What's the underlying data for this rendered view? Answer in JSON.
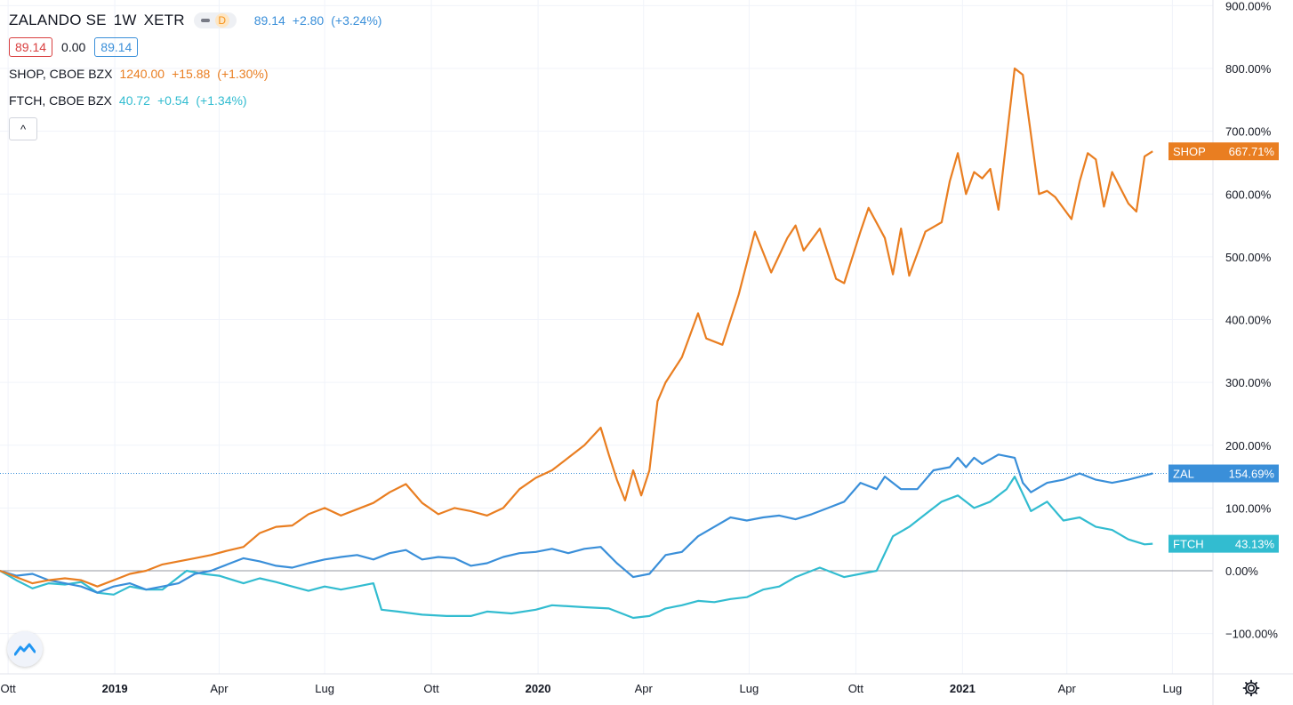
{
  "legend": {
    "main": {
      "symbol": "ZALANDO SE",
      "interval": "1W",
      "exchange": "XETR",
      "badge": "D",
      "last": "89.14",
      "change": "+2.80",
      "change_pct": "(+3.24%)"
    },
    "ohlc": {
      "bid": "89.14",
      "spread": "0.00",
      "ask": "89.14"
    },
    "compare": [
      {
        "symbol": "SHOP, CBOE BZX",
        "last": "1240.00",
        "change": "+15.88",
        "change_pct": "(+1.30%)"
      },
      {
        "symbol": "FTCH, CBOE BZX",
        "last": "40.72",
        "change": "+0.54",
        "change_pct": "(+1.34%)"
      }
    ],
    "collapse_glyph": "^"
  },
  "colors": {
    "shop": "#e97e21",
    "zal": "#3a8fd9",
    "ftch": "#32bcd0",
    "grid": "#f0f3fa",
    "text": "#131722",
    "red": "#d93f3f"
  },
  "icons": {
    "logo": "tradingview-logo-icon",
    "settings": "gear-icon"
  },
  "chart_data": {
    "type": "line",
    "y_unit": "%",
    "ylim": [
      -150,
      900
    ],
    "yticks": [
      -100,
      0,
      100,
      200,
      300,
      400,
      500,
      600,
      700,
      800,
      900
    ],
    "ytick_labels": [
      "−100.00%",
      "0.00%",
      "100.00%",
      "200.00%",
      "300.00%",
      "400.00%",
      "500.00%",
      "600.00%",
      "700.00%",
      "800.00%",
      "900.00%"
    ],
    "xlim": [
      "2018-09-24",
      "2021-09-20"
    ],
    "xticks": [
      {
        "date": "2018-10-01",
        "label": "Ott",
        "bold": false
      },
      {
        "date": "2019-01-01",
        "label": "2019",
        "bold": true
      },
      {
        "date": "2019-04-01",
        "label": "Apr",
        "bold": false
      },
      {
        "date": "2019-07-01",
        "label": "Lug",
        "bold": false
      },
      {
        "date": "2019-10-01",
        "label": "Ott",
        "bold": false
      },
      {
        "date": "2020-01-01",
        "label": "2020",
        "bold": true
      },
      {
        "date": "2020-04-01",
        "label": "Apr",
        "bold": false
      },
      {
        "date": "2020-07-01",
        "label": "Lug",
        "bold": false
      },
      {
        "date": "2020-10-01",
        "label": "Ott",
        "bold": false
      },
      {
        "date": "2021-01-01",
        "label": "2021",
        "bold": true
      },
      {
        "date": "2021-04-01",
        "label": "Apr",
        "bold": false
      },
      {
        "date": "2021-07-01",
        "label": "Lug",
        "bold": false
      }
    ],
    "grid": true,
    "series": [
      {
        "name": "SHOP",
        "label_value": "667.71%",
        "color": "#e97e21",
        "points": [
          [
            "2018-09-24",
            0
          ],
          [
            "2018-10-08",
            -10
          ],
          [
            "2018-10-22",
            -20
          ],
          [
            "2018-11-05",
            -15
          ],
          [
            "2018-11-19",
            -12
          ],
          [
            "2018-12-03",
            -15
          ],
          [
            "2018-12-17",
            -25
          ],
          [
            "2018-12-31",
            -15
          ],
          [
            "2019-01-14",
            -5
          ],
          [
            "2019-01-28",
            0
          ],
          [
            "2019-02-11",
            10
          ],
          [
            "2019-02-25",
            15
          ],
          [
            "2019-03-11",
            20
          ],
          [
            "2019-03-25",
            25
          ],
          [
            "2019-04-08",
            32
          ],
          [
            "2019-04-22",
            38
          ],
          [
            "2019-05-06",
            60
          ],
          [
            "2019-05-20",
            70
          ],
          [
            "2019-06-03",
            72
          ],
          [
            "2019-06-17",
            90
          ],
          [
            "2019-07-01",
            100
          ],
          [
            "2019-07-15",
            88
          ],
          [
            "2019-07-29",
            98
          ],
          [
            "2019-08-12",
            108
          ],
          [
            "2019-08-26",
            125
          ],
          [
            "2019-09-09",
            138
          ],
          [
            "2019-09-23",
            108
          ],
          [
            "2019-10-07",
            90
          ],
          [
            "2019-10-21",
            100
          ],
          [
            "2019-11-04",
            95
          ],
          [
            "2019-11-18",
            88
          ],
          [
            "2019-12-02",
            100
          ],
          [
            "2019-12-16",
            130
          ],
          [
            "2019-12-30",
            148
          ],
          [
            "2020-01-13",
            160
          ],
          [
            "2020-01-27",
            180
          ],
          [
            "2020-02-10",
            200
          ],
          [
            "2020-02-24",
            228
          ],
          [
            "2020-03-02",
            185
          ],
          [
            "2020-03-09",
            145
          ],
          [
            "2020-03-16",
            112
          ],
          [
            "2020-03-23",
            160
          ],
          [
            "2020-03-30",
            120
          ],
          [
            "2020-04-06",
            160
          ],
          [
            "2020-04-13",
            270
          ],
          [
            "2020-04-20",
            300
          ],
          [
            "2020-05-04",
            340
          ],
          [
            "2020-05-18",
            410
          ],
          [
            "2020-05-25",
            370
          ],
          [
            "2020-06-08",
            360
          ],
          [
            "2020-06-22",
            440
          ],
          [
            "2020-07-06",
            540
          ],
          [
            "2020-07-20",
            475
          ],
          [
            "2020-08-03",
            530
          ],
          [
            "2020-08-10",
            550
          ],
          [
            "2020-08-17",
            510
          ],
          [
            "2020-08-31",
            545
          ],
          [
            "2020-09-14",
            465
          ],
          [
            "2020-09-21",
            458
          ],
          [
            "2020-10-05",
            540
          ],
          [
            "2020-10-12",
            578
          ],
          [
            "2020-10-26",
            530
          ],
          [
            "2020-11-02",
            472
          ],
          [
            "2020-11-09",
            545
          ],
          [
            "2020-11-16",
            470
          ],
          [
            "2020-11-30",
            540
          ],
          [
            "2020-12-14",
            555
          ],
          [
            "2020-12-21",
            620
          ],
          [
            "2020-12-28",
            665
          ],
          [
            "2021-01-04",
            600
          ],
          [
            "2021-01-11",
            635
          ],
          [
            "2021-01-18",
            625
          ],
          [
            "2021-01-25",
            640
          ],
          [
            "2021-02-01",
            575
          ],
          [
            "2021-02-15",
            800
          ],
          [
            "2021-02-22",
            790
          ],
          [
            "2021-03-08",
            600
          ],
          [
            "2021-03-15",
            605
          ],
          [
            "2021-03-22",
            595
          ],
          [
            "2021-04-05",
            560
          ],
          [
            "2021-04-12",
            620
          ],
          [
            "2021-04-19",
            665
          ],
          [
            "2021-04-26",
            655
          ],
          [
            "2021-05-03",
            580
          ],
          [
            "2021-05-10",
            635
          ],
          [
            "2021-05-24",
            585
          ],
          [
            "2021-05-31",
            572
          ],
          [
            "2021-06-07",
            660
          ],
          [
            "2021-06-14",
            668
          ]
        ]
      },
      {
        "name": "ZAL",
        "label_value": "154.69%",
        "color": "#3a8fd9",
        "points": [
          [
            "2018-09-24",
            0
          ],
          [
            "2018-10-08",
            -8
          ],
          [
            "2018-10-22",
            -5
          ],
          [
            "2018-11-05",
            -15
          ],
          [
            "2018-11-19",
            -20
          ],
          [
            "2018-12-03",
            -25
          ],
          [
            "2018-12-17",
            -35
          ],
          [
            "2018-12-31",
            -25
          ],
          [
            "2019-01-14",
            -20
          ],
          [
            "2019-01-28",
            -30
          ],
          [
            "2019-02-11",
            -25
          ],
          [
            "2019-02-25",
            -20
          ],
          [
            "2019-03-11",
            -5
          ],
          [
            "2019-03-25",
            0
          ],
          [
            "2019-04-08",
            10
          ],
          [
            "2019-04-22",
            20
          ],
          [
            "2019-05-06",
            15
          ],
          [
            "2019-05-20",
            8
          ],
          [
            "2019-06-03",
            5
          ],
          [
            "2019-06-17",
            12
          ],
          [
            "2019-07-01",
            18
          ],
          [
            "2019-07-15",
            22
          ],
          [
            "2019-07-29",
            25
          ],
          [
            "2019-08-12",
            18
          ],
          [
            "2019-08-26",
            28
          ],
          [
            "2019-09-09",
            33
          ],
          [
            "2019-09-23",
            18
          ],
          [
            "2019-10-07",
            22
          ],
          [
            "2019-10-21",
            20
          ],
          [
            "2019-11-04",
            8
          ],
          [
            "2019-11-18",
            12
          ],
          [
            "2019-12-02",
            22
          ],
          [
            "2019-12-16",
            28
          ],
          [
            "2019-12-30",
            30
          ],
          [
            "2020-01-13",
            35
          ],
          [
            "2020-01-27",
            28
          ],
          [
            "2020-02-10",
            35
          ],
          [
            "2020-02-24",
            38
          ],
          [
            "2020-03-09",
            12
          ],
          [
            "2020-03-23",
            -10
          ],
          [
            "2020-04-06",
            -5
          ],
          [
            "2020-04-20",
            25
          ],
          [
            "2020-05-04",
            30
          ],
          [
            "2020-05-18",
            55
          ],
          [
            "2020-06-01",
            70
          ],
          [
            "2020-06-15",
            85
          ],
          [
            "2020-06-29",
            80
          ],
          [
            "2020-07-13",
            85
          ],
          [
            "2020-07-27",
            88
          ],
          [
            "2020-08-10",
            82
          ],
          [
            "2020-08-24",
            90
          ],
          [
            "2020-09-07",
            100
          ],
          [
            "2020-09-21",
            110
          ],
          [
            "2020-10-05",
            140
          ],
          [
            "2020-10-19",
            130
          ],
          [
            "2020-10-26",
            150
          ],
          [
            "2020-11-09",
            130
          ],
          [
            "2020-11-23",
            130
          ],
          [
            "2020-12-07",
            160
          ],
          [
            "2020-12-21",
            165
          ],
          [
            "2020-12-28",
            180
          ],
          [
            "2021-01-04",
            165
          ],
          [
            "2021-01-11",
            180
          ],
          [
            "2021-01-18",
            170
          ],
          [
            "2021-02-01",
            185
          ],
          [
            "2021-02-15",
            180
          ],
          [
            "2021-02-22",
            140
          ],
          [
            "2021-03-01",
            125
          ],
          [
            "2021-03-15",
            140
          ],
          [
            "2021-03-29",
            145
          ],
          [
            "2021-04-12",
            155
          ],
          [
            "2021-04-26",
            145
          ],
          [
            "2021-05-10",
            140
          ],
          [
            "2021-05-24",
            145
          ],
          [
            "2021-06-14",
            155
          ]
        ]
      },
      {
        "name": "FTCH",
        "label_value": "43.13%",
        "color": "#32bcd0",
        "points": [
          [
            "2018-09-24",
            0
          ],
          [
            "2018-10-08",
            -15
          ],
          [
            "2018-10-22",
            -28
          ],
          [
            "2018-11-05",
            -20
          ],
          [
            "2018-11-19",
            -22
          ],
          [
            "2018-12-03",
            -18
          ],
          [
            "2018-12-17",
            -35
          ],
          [
            "2018-12-31",
            -38
          ],
          [
            "2019-01-14",
            -25
          ],
          [
            "2019-01-28",
            -30
          ],
          [
            "2019-02-11",
            -30
          ],
          [
            "2019-03-04",
            0
          ],
          [
            "2019-03-18",
            -5
          ],
          [
            "2019-04-01",
            -8
          ],
          [
            "2019-04-22",
            -20
          ],
          [
            "2019-05-06",
            -12
          ],
          [
            "2019-05-20",
            -18
          ],
          [
            "2019-06-03",
            -25
          ],
          [
            "2019-06-17",
            -32
          ],
          [
            "2019-07-01",
            -25
          ],
          [
            "2019-07-15",
            -30
          ],
          [
            "2019-07-29",
            -25
          ],
          [
            "2019-08-12",
            -20
          ],
          [
            "2019-08-19",
            -62
          ],
          [
            "2019-09-02",
            -65
          ],
          [
            "2019-09-23",
            -70
          ],
          [
            "2019-10-14",
            -72
          ],
          [
            "2019-11-04",
            -72
          ],
          [
            "2019-11-18",
            -65
          ],
          [
            "2019-12-09",
            -68
          ],
          [
            "2019-12-30",
            -62
          ],
          [
            "2020-01-13",
            -55
          ],
          [
            "2020-02-10",
            -58
          ],
          [
            "2020-03-02",
            -60
          ],
          [
            "2020-03-23",
            -75
          ],
          [
            "2020-04-06",
            -72
          ],
          [
            "2020-04-20",
            -60
          ],
          [
            "2020-05-04",
            -55
          ],
          [
            "2020-05-18",
            -48
          ],
          [
            "2020-06-01",
            -50
          ],
          [
            "2020-06-15",
            -45
          ],
          [
            "2020-06-29",
            -42
          ],
          [
            "2020-07-13",
            -30
          ],
          [
            "2020-07-27",
            -25
          ],
          [
            "2020-08-10",
            -10
          ],
          [
            "2020-08-31",
            5
          ],
          [
            "2020-09-21",
            -10
          ],
          [
            "2020-10-05",
            -5
          ],
          [
            "2020-10-19",
            0
          ],
          [
            "2020-11-02",
            55
          ],
          [
            "2020-11-16",
            70
          ],
          [
            "2020-11-30",
            90
          ],
          [
            "2020-12-14",
            110
          ],
          [
            "2020-12-28",
            120
          ],
          [
            "2021-01-11",
            100
          ],
          [
            "2021-01-25",
            110
          ],
          [
            "2021-02-08",
            130
          ],
          [
            "2021-02-15",
            150
          ],
          [
            "2021-03-01",
            95
          ],
          [
            "2021-03-15",
            110
          ],
          [
            "2021-03-29",
            80
          ],
          [
            "2021-04-12",
            85
          ],
          [
            "2021-04-26",
            70
          ],
          [
            "2021-05-10",
            65
          ],
          [
            "2021-05-24",
            50
          ],
          [
            "2021-06-07",
            42
          ],
          [
            "2021-06-14",
            43
          ]
        ]
      }
    ]
  }
}
